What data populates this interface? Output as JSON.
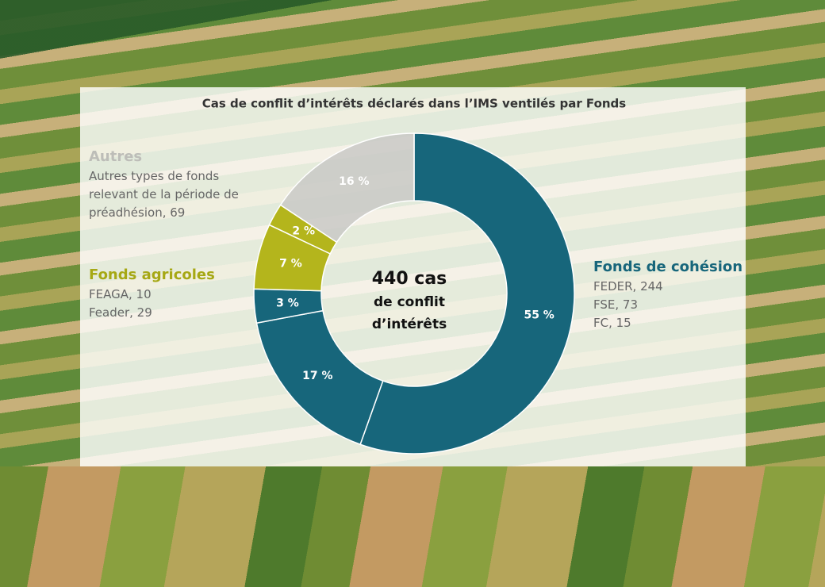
{
  "chart_data": {
    "type": "donut",
    "title": "Cas de conflit d’intérêts déclarés dans l’IMS ventilés par Fonds",
    "center_label": [
      "440 cas",
      "de conflit",
      "d’intérêts"
    ],
    "values": [
      244,
      73,
      15,
      29,
      10,
      69
    ],
    "percents": [
      55,
      17,
      3,
      7,
      2,
      16
    ],
    "percent_labels": [
      "55 %",
      "17 %",
      "3 %",
      "7 %",
      "2 %",
      "16 %"
    ],
    "colors": [
      "#17667b",
      "#17667b",
      "#17667b",
      "#b4b51c",
      "#b4b51c",
      "#c9c9c5"
    ],
    "groups": [
      {
        "name": "Autres",
        "color": "#bdbdb8",
        "items": [
          "Autres types de fonds relevant de la période de préadhésion, 69"
        ]
      },
      {
        "name": "Fonds agricoles",
        "color": "#a6a815",
        "items": [
          "FEAGA, 10",
          "Feader, 29"
        ]
      },
      {
        "name": "Fonds de cohésion",
        "color": "#17667b",
        "items": [
          "FEDER, 244",
          "FSE, 73",
          "FC, 15"
        ]
      }
    ]
  }
}
